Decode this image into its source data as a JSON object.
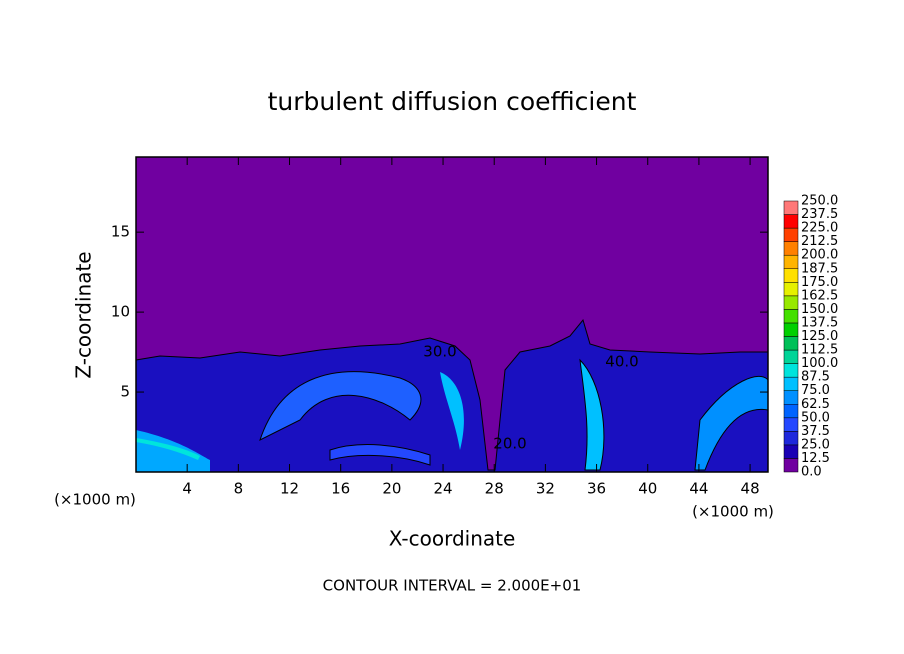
{
  "chart_data": {
    "type": "contour",
    "title": "turbulent diffusion coefficient",
    "x_label": "X-coordinate",
    "y_label": "Z-coordinate",
    "x_unit": "(×1000 m)",
    "y_unit": "(×1000 m)",
    "xlim": [
      0,
      49.4
    ],
    "ylim": [
      0,
      19.7
    ],
    "xticks": [
      4,
      8,
      12,
      16,
      20,
      24,
      28,
      32,
      36,
      40,
      44,
      48
    ],
    "yticks": [
      5,
      10,
      15
    ],
    "background_color": "#7000a0",
    "colorbar": {
      "levels": [
        {
          "value": 0,
          "label": "0.0"
        },
        12.5,
        {
          "value": 25,
          "label": "25.0"
        },
        37.5,
        {
          "value": 50,
          "label": "50.0"
        },
        62.5,
        {
          "value": 75,
          "label": "75.0"
        },
        87.5,
        {
          "value": 100,
          "label": "100.0"
        },
        112.5,
        {
          "value": 125,
          "label": "125.0"
        },
        137.5,
        {
          "value": 150,
          "label": "150.0"
        },
        162.5,
        {
          "value": 175,
          "label": "175.0"
        },
        187.5,
        {
          "value": 200,
          "label": "200.0"
        },
        212.5,
        {
          "value": 225,
          "label": "225.0"
        },
        237.5,
        {
          "value": 250,
          "label": "250.0"
        }
      ],
      "colors": [
        "#7000a0",
        "#1a00b4",
        "#1e28dc",
        "#2448ff",
        "#0064ff",
        "#0090ff",
        "#00c0ff",
        "#00e4dc",
        "#00d498",
        "#00c058",
        "#00d000",
        "#44e000",
        "#98e800",
        "#e6f000",
        "#ffe000",
        "#ffb400",
        "#ff8000",
        "#ff4000",
        "#ff0000",
        "#ff7878"
      ]
    },
    "contour_labels": [
      {
        "value": 30,
        "label": "30.0"
      },
      {
        "value": 40,
        "label": "40.0"
      },
      {
        "value": 20,
        "label": "20.0"
      }
    ],
    "footnote": "CONTOUR INTERVAL = 2.000E+01"
  }
}
